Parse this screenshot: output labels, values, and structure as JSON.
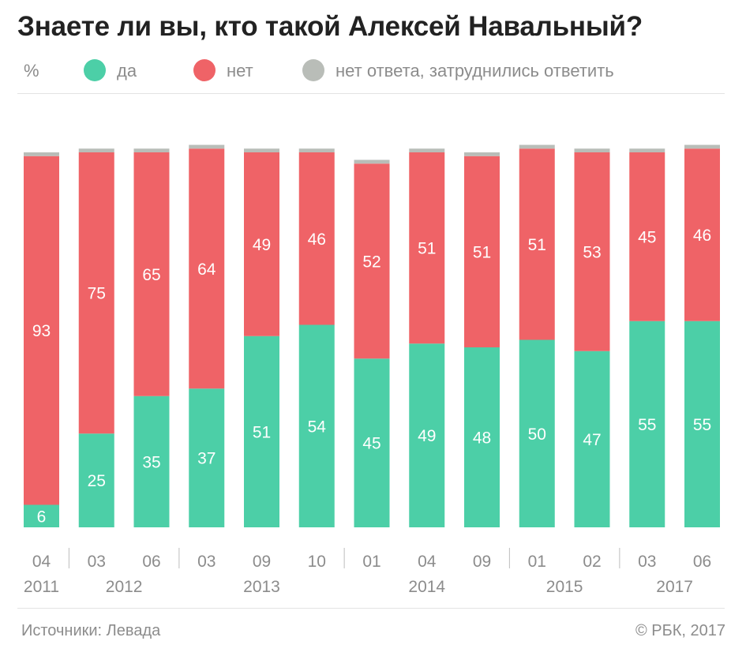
{
  "title": "Знаете ли вы, кто такой Алексей Навальный?",
  "legend": {
    "unit": "%",
    "items": [
      {
        "label": "да",
        "color": "#4ccfa7"
      },
      {
        "label": "нет",
        "color": "#ef6367"
      },
      {
        "label": "нет ответа, затруднились ответить",
        "color": "#b9bdb8"
      }
    ]
  },
  "footer": {
    "source": "Источники: Левада",
    "copyright": "© РБК, 2017"
  },
  "chart_data": {
    "type": "bar",
    "stacked": true,
    "categories": [
      "04",
      "03",
      "06",
      "03",
      "09",
      "10",
      "01",
      "04",
      "09",
      "01",
      "02",
      "03",
      "06"
    ],
    "years": [
      {
        "label": "2011",
        "from": 0,
        "to": 0
      },
      {
        "label": "2012",
        "from": 1,
        "to": 2
      },
      {
        "label": "2013",
        "from": 3,
        "to": 5
      },
      {
        "label": "2014",
        "from": 6,
        "to": 8
      },
      {
        "label": "2015",
        "from": 9,
        "to": 10
      },
      {
        "label": "2017",
        "from": 11,
        "to": 12
      }
    ],
    "series": [
      {
        "name": "да",
        "color": "#4ccfa7",
        "values": [
          6,
          25,
          35,
          37,
          51,
          54,
          45,
          49,
          48,
          50,
          47,
          55,
          55
        ]
      },
      {
        "name": "нет",
        "color": "#ef6367",
        "values": [
          93,
          75,
          65,
          64,
          49,
          46,
          52,
          51,
          51,
          51,
          53,
          45,
          46
        ]
      },
      {
        "name": "нет ответа, затруднились ответить",
        "color": "#b9bdb8",
        "values": [
          1,
          1,
          1,
          1,
          1,
          1,
          1,
          1,
          1,
          1,
          1,
          1,
          1
        ]
      }
    ],
    "ylim": [
      0,
      100
    ]
  }
}
